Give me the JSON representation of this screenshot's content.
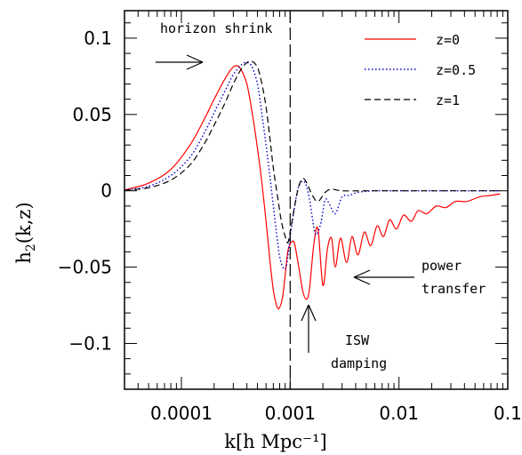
{
  "chart_data": {
    "type": "line",
    "title": "",
    "xlabel": "k[h Mpc⁻¹]",
    "ylabel_main": "h",
    "ylabel_sub": "2",
    "ylabel_rest": "(k,z)",
    "xscale": "log",
    "xlim": [
      3e-05,
      0.1
    ],
    "ylim": [
      -0.13,
      0.118
    ],
    "x_ticks": [
      {
        "value": 0.0001,
        "label": "0.0001"
      },
      {
        "value": 0.001,
        "label": "0.001"
      },
      {
        "value": 0.01,
        "label": "0.01"
      },
      {
        "value": 0.1,
        "label": "0.1"
      }
    ],
    "y_ticks": [
      {
        "value": 0.1,
        "label": "0.1"
      },
      {
        "value": 0.05,
        "label": "0.05"
      },
      {
        "value": 0,
        "label": "0"
      },
      {
        "value": -0.05,
        "label": "−0.05"
      },
      {
        "value": -0.1,
        "label": "−0.1"
      }
    ],
    "legend_position": "top-right",
    "vertical_line_x": 0.001,
    "series": [
      {
        "name": "z=0",
        "color": "#ff0000",
        "dash": "solid",
        "points": [
          [
            3e-05,
            0.0005
          ],
          [
            5e-05,
            0.005
          ],
          [
            8e-05,
            0.014
          ],
          [
            0.00012,
            0.03
          ],
          [
            0.00016,
            0.046
          ],
          [
            0.0002,
            0.06
          ],
          [
            0.00025,
            0.073
          ],
          [
            0.00029,
            0.08
          ],
          [
            0.00032,
            0.082
          ],
          [
            0.00035,
            0.08
          ],
          [
            0.0004,
            0.07
          ],
          [
            0.00045,
            0.05
          ],
          [
            0.0005,
            0.028
          ],
          [
            0.00055,
            0.005
          ],
          [
            0.0006,
            -0.02
          ],
          [
            0.00065,
            -0.045
          ],
          [
            0.0007,
            -0.065
          ],
          [
            0.00075,
            -0.075
          ],
          [
            0.00079,
            -0.077
          ],
          [
            0.00085,
            -0.07
          ],
          [
            0.0009,
            -0.055
          ],
          [
            0.00095,
            -0.04
          ],
          [
            0.001,
            -0.035
          ],
          [
            0.00105,
            -0.033
          ],
          [
            0.0011,
            -0.035
          ],
          [
            0.0012,
            -0.05
          ],
          [
            0.0013,
            -0.065
          ],
          [
            0.0014,
            -0.071
          ],
          [
            0.0015,
            -0.065
          ],
          [
            0.00165,
            -0.035
          ],
          [
            0.0018,
            -0.025
          ],
          [
            0.002,
            -0.062
          ],
          [
            0.0022,
            -0.038
          ],
          [
            0.0024,
            -0.031
          ],
          [
            0.0026,
            -0.05
          ],
          [
            0.0029,
            -0.031
          ],
          [
            0.0033,
            -0.047
          ],
          [
            0.0037,
            -0.03
          ],
          [
            0.0042,
            -0.042
          ],
          [
            0.0048,
            -0.027
          ],
          [
            0.0055,
            -0.036
          ],
          [
            0.0063,
            -0.023
          ],
          [
            0.0072,
            -0.03
          ],
          [
            0.0082,
            -0.019
          ],
          [
            0.0095,
            -0.025
          ],
          [
            0.011,
            -0.016
          ],
          [
            0.013,
            -0.02
          ],
          [
            0.015,
            -0.013
          ],
          [
            0.018,
            -0.015
          ],
          [
            0.022,
            -0.01
          ],
          [
            0.027,
            -0.011
          ],
          [
            0.033,
            -0.007
          ],
          [
            0.042,
            -0.007
          ],
          [
            0.055,
            -0.004
          ],
          [
            0.07,
            -0.003
          ],
          [
            0.085,
            -0.002
          ]
        ]
      },
      {
        "name": "z=0.5",
        "color": "#0000cc",
        "dash": "dotted",
        "points": [
          [
            3e-05,
            0.0004
          ],
          [
            5e-05,
            0.003
          ],
          [
            8e-05,
            0.01
          ],
          [
            0.00012,
            0.022
          ],
          [
            0.00016,
            0.037
          ],
          [
            0.0002,
            0.051
          ],
          [
            0.00025,
            0.065
          ],
          [
            0.0003,
            0.076
          ],
          [
            0.00035,
            0.082
          ],
          [
            0.00039,
            0.084
          ],
          [
            0.00044,
            0.082
          ],
          [
            0.0005,
            0.07
          ],
          [
            0.00055,
            0.05
          ],
          [
            0.0006,
            0.03
          ],
          [
            0.00065,
            0.01
          ],
          [
            0.0007,
            -0.01
          ],
          [
            0.00075,
            -0.028
          ],
          [
            0.0008,
            -0.043
          ],
          [
            0.00087,
            -0.051
          ],
          [
            0.00093,
            -0.048
          ],
          [
            0.001,
            -0.03
          ],
          [
            0.0011,
            -0.01
          ],
          [
            0.0012,
            0.003
          ],
          [
            0.00135,
            0.006
          ],
          [
            0.0015,
            -0.005
          ],
          [
            0.0017,
            -0.028
          ],
          [
            0.0019,
            -0.022
          ],
          [
            0.0021,
            -0.006
          ],
          [
            0.0023,
            -0.009
          ],
          [
            0.0026,
            -0.015
          ],
          [
            0.003,
            -0.004
          ],
          [
            0.0035,
            -0.003
          ],
          [
            0.0042,
            -0.001
          ],
          [
            0.006,
            0
          ],
          [
            0.01,
            0
          ],
          [
            0.03,
            0
          ],
          [
            0.085,
            0
          ]
        ]
      },
      {
        "name": "z=1",
        "color": "#000000",
        "dash": "dashed",
        "points": [
          [
            3e-05,
            0.0003
          ],
          [
            5e-05,
            0.002
          ],
          [
            8e-05,
            0.007
          ],
          [
            0.00012,
            0.017
          ],
          [
            0.00016,
            0.03
          ],
          [
            0.0002,
            0.043
          ],
          [
            0.00025,
            0.057
          ],
          [
            0.0003,
            0.07
          ],
          [
            0.00035,
            0.079
          ],
          [
            0.0004,
            0.084
          ],
          [
            0.00044,
            0.085
          ],
          [
            0.0005,
            0.081
          ],
          [
            0.00055,
            0.07
          ],
          [
            0.0006,
            0.055
          ],
          [
            0.00065,
            0.035
          ],
          [
            0.0007,
            0.015
          ],
          [
            0.00077,
            -0.005
          ],
          [
            0.00083,
            -0.02
          ],
          [
            0.0009,
            -0.03
          ],
          [
            0.00095,
            -0.034
          ],
          [
            0.001,
            -0.027
          ],
          [
            0.0011,
            -0.01
          ],
          [
            0.0012,
            0.003
          ],
          [
            0.0013,
            0.008
          ],
          [
            0.0014,
            0.006
          ],
          [
            0.0016,
            -0.003
          ],
          [
            0.0018,
            -0.007
          ],
          [
            0.0021,
            -0.001
          ],
          [
            0.0024,
            0.001
          ],
          [
            0.003,
            0
          ],
          [
            0.005,
            0
          ],
          [
            0.01,
            0
          ],
          [
            0.03,
            0
          ],
          [
            0.085,
            0
          ]
        ]
      }
    ],
    "annotations": [
      {
        "text": "horizon shrink"
      },
      {
        "text": "power"
      },
      {
        "text": "transfer"
      },
      {
        "text": "ISW"
      },
      {
        "text": "damping"
      }
    ]
  }
}
